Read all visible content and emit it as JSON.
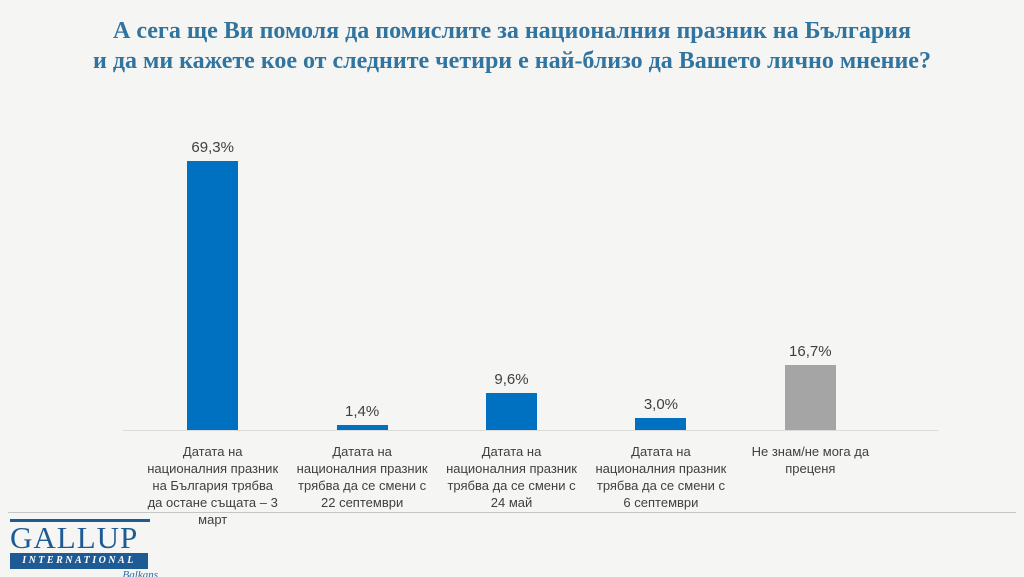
{
  "title": {
    "line1": "А сега ще Ви помоля да помислите за националния празник на България",
    "line2": "и да ми кажете кое от следните четири е най-близо да Вашето лично мнение?"
  },
  "chart_data": {
    "type": "bar",
    "title": "А сега ще Ви помоля да помислите за националния празник на България и да ми кажете кое от следните четири е най-близо да Вашето лично мнение?",
    "categories": [
      "Датата на националния празник на България трябва да остане същата – 3 март",
      "Датата на националния празник трябва да се смени с 22 септември",
      "Датата на националния празник трябва да се смени с 24 май",
      "Датата на националния празник трябва да се смени с 6 септември",
      "Не знам/не мога да преценя"
    ],
    "values": [
      69.3,
      1.4,
      9.6,
      3.0,
      16.7
    ],
    "value_labels": [
      "69,3%",
      "1,4%",
      "9,6%",
      "3,0%",
      "16,7%"
    ],
    "bar_colors": [
      "#0070C0",
      "#0070C0",
      "#0070C0",
      "#0070C0",
      "#A5A5A5"
    ],
    "xlabel": "",
    "ylabel": "",
    "ylim": [
      0,
      76
    ],
    "grid": false,
    "legend": null
  },
  "footer": {
    "logo": {
      "name": "GALLUP",
      "subtitle": "INTERNATIONAL",
      "region": "Balkans"
    }
  },
  "colors": {
    "accent_blue": "#0070C0",
    "neutral_gray": "#A5A5A5",
    "title_blue": "#31749F",
    "logo_blue": "#1E5B94",
    "axis_line": "#DBDBDB",
    "background": "#F5F5F3"
  }
}
